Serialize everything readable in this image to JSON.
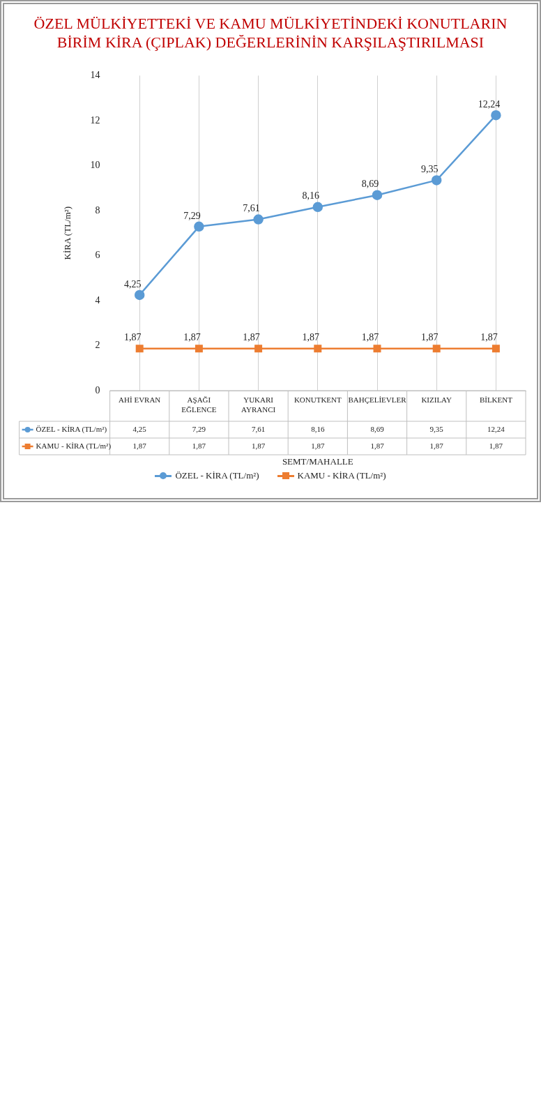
{
  "chart_data": {
    "type": "line",
    "title": "ÖZEL MÜLKİYETTEKİ VE KAMU MÜLKİYETİNDEKİ KONUTLARIN BİRİM KİRA (ÇIPLAK) DEĞERLERİNİN KARŞILAŞTIRILMASI",
    "xlabel": "SEMT/MAHALLE",
    "ylabel": "KİRA (TL/m²)",
    "categories": [
      "AHİ EVRAN",
      "AŞAĞI EĞLENCE",
      "YUKARI AYRANCI",
      "KONUTKENT",
      "BAHÇELİEVLER",
      "KIZILAY",
      "BİLKENT"
    ],
    "series": [
      {
        "name": "ÖZEL - KİRA (TL/m²)",
        "color": "#5b9bd5",
        "marker": "circle",
        "values": [
          4.25,
          7.29,
          7.61,
          8.16,
          8.69,
          9.35,
          12.24
        ],
        "value_labels": [
          "4,25",
          "7,29",
          "7,61",
          "8,16",
          "8,69",
          "9,35",
          "12,24"
        ]
      },
      {
        "name": "KAMU - KİRA (TL/m²)",
        "color": "#ed7d31",
        "marker": "square",
        "values": [
          1.87,
          1.87,
          1.87,
          1.87,
          1.87,
          1.87,
          1.87
        ],
        "value_labels": [
          "1,87",
          "1,87",
          "1,87",
          "1,87",
          "1,87",
          "1,87",
          "1,87"
        ]
      }
    ],
    "ylim": [
      0,
      14
    ],
    "yticks": [
      0,
      2,
      4,
      6,
      8,
      10,
      12,
      14
    ],
    "grid": "x",
    "legend": "bottom"
  }
}
